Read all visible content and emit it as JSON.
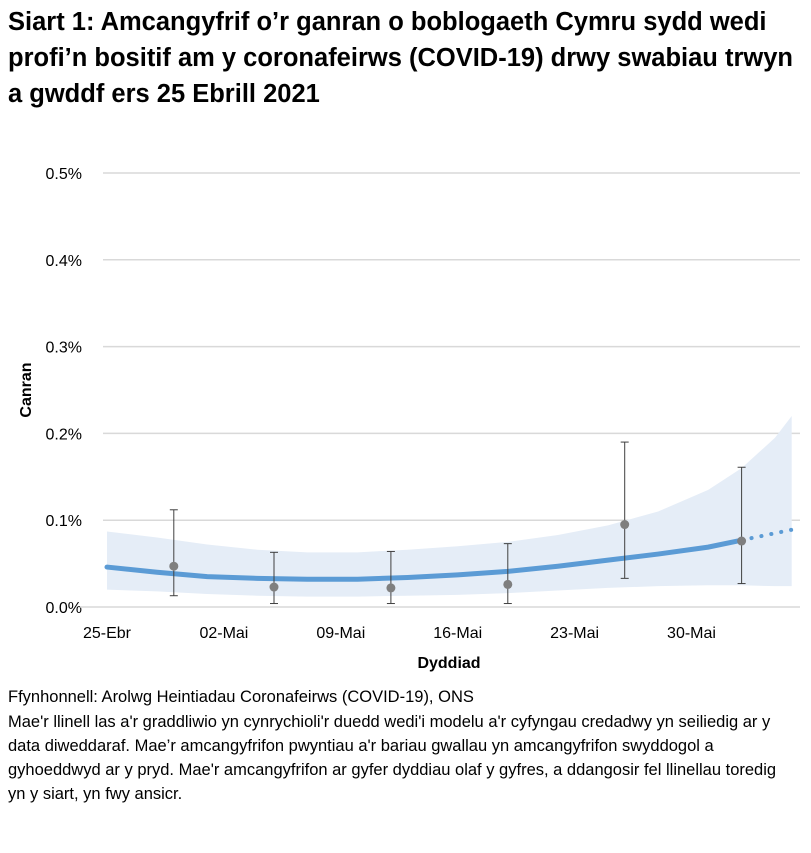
{
  "title": "Siart 1: Amcangyfrif o’r ganran o boblogaeth Cymru sydd wedi profi’n bositif am y coronafeirws (COVID-19) drwy swabiau trwyn a gwddf ers 25 Ebrill 2021",
  "source": "Ffynhonnell: Arolwg Heintiadau Coronafeirws (COVID-19), ONS",
  "note": "Mae'r llinell las a'r graddliwio yn cynrychioli'r duedd wedi'i modelu a'r cyfyngau credadwy yn seiliedig ar y data diweddaraf. Mae’r amcangyfrifon pwyntiau a'r bariau gwallau yn amcangyfrifon swyddogol a gyhoeddwyd ar y pryd. Mae'r amcangyfrifon ar gyfer dyddiau olaf y gyfres, a ddangosir fel llinellau toredig yn y siart, yn fwy ansicr.",
  "colors": {
    "trend": "#5b9bd5",
    "band": "#e5edf7",
    "points": "#7f7f7f",
    "errorbars": "#404040",
    "grid": "#d9d9d9"
  },
  "chart_data": {
    "type": "line",
    "xlabel": "Dyddiad",
    "ylabel": "Canran",
    "x_range": [
      "2021-04-25",
      "2021-06-05"
    ],
    "xticks": [
      {
        "date": "2021-04-25",
        "label": "25-Ebr"
      },
      {
        "date": "2021-05-02",
        "label": "02-Mai"
      },
      {
        "date": "2021-05-09",
        "label": "09-Mai"
      },
      {
        "date": "2021-05-16",
        "label": "16-Mai"
      },
      {
        "date": "2021-05-23",
        "label": "23-Mai"
      },
      {
        "date": "2021-05-30",
        "label": "30-Mai"
      }
    ],
    "ylim": [
      0,
      0.5
    ],
    "yticks": [
      {
        "v": 0,
        "label": "0.0%"
      },
      {
        "v": 0.1,
        "label": "0.1%"
      },
      {
        "v": 0.2,
        "label": "0.2%"
      },
      {
        "v": 0.3,
        "label": "0.3%"
      },
      {
        "v": 0.4,
        "label": "0.4%"
      },
      {
        "v": 0.5,
        "label": "0.5%"
      }
    ],
    "grid": true,
    "trend": [
      {
        "date": "2021-04-25",
        "v": 0.046,
        "lo": 0.02,
        "hi": 0.087
      },
      {
        "date": "2021-04-28",
        "v": 0.04,
        "lo": 0.018,
        "hi": 0.08
      },
      {
        "date": "2021-05-01",
        "v": 0.035,
        "lo": 0.015,
        "hi": 0.072
      },
      {
        "date": "2021-05-04",
        "v": 0.033,
        "lo": 0.013,
        "hi": 0.066
      },
      {
        "date": "2021-05-07",
        "v": 0.032,
        "lo": 0.012,
        "hi": 0.063
      },
      {
        "date": "2021-05-10",
        "v": 0.032,
        "lo": 0.012,
        "hi": 0.063
      },
      {
        "date": "2021-05-13",
        "v": 0.034,
        "lo": 0.013,
        "hi": 0.066
      },
      {
        "date": "2021-05-16",
        "v": 0.037,
        "lo": 0.014,
        "hi": 0.07
      },
      {
        "date": "2021-05-19",
        "v": 0.041,
        "lo": 0.016,
        "hi": 0.075
      },
      {
        "date": "2021-05-22",
        "v": 0.047,
        "lo": 0.019,
        "hi": 0.083
      },
      {
        "date": "2021-05-25",
        "v": 0.054,
        "lo": 0.022,
        "hi": 0.094
      },
      {
        "date": "2021-05-28",
        "v": 0.061,
        "lo": 0.024,
        "hi": 0.11
      },
      {
        "date": "2021-05-31",
        "v": 0.069,
        "lo": 0.025,
        "hi": 0.135
      },
      {
        "date": "2021-06-02",
        "v": 0.077,
        "lo": 0.025,
        "hi": 0.16
      },
      {
        "date": "2021-06-04",
        "v": 0.085,
        "lo": 0.024,
        "hi": 0.195
      },
      {
        "date": "2021-06-05",
        "v": 0.089,
        "lo": 0.024,
        "hi": 0.22
      }
    ],
    "dotted_from": "2021-06-02",
    "points": [
      {
        "date": "2021-04-29",
        "v": 0.047,
        "lo": 0.013,
        "hi": 0.112
      },
      {
        "date": "2021-05-05",
        "v": 0.023,
        "lo": 0.004,
        "hi": 0.063
      },
      {
        "date": "2021-05-12",
        "v": 0.022,
        "lo": 0.004,
        "hi": 0.064
      },
      {
        "date": "2021-05-19",
        "v": 0.026,
        "lo": 0.004,
        "hi": 0.073
      },
      {
        "date": "2021-05-26",
        "v": 0.095,
        "lo": 0.033,
        "hi": 0.19
      },
      {
        "date": "2021-06-02",
        "v": 0.076,
        "lo": 0.027,
        "hi": 0.161
      }
    ]
  }
}
